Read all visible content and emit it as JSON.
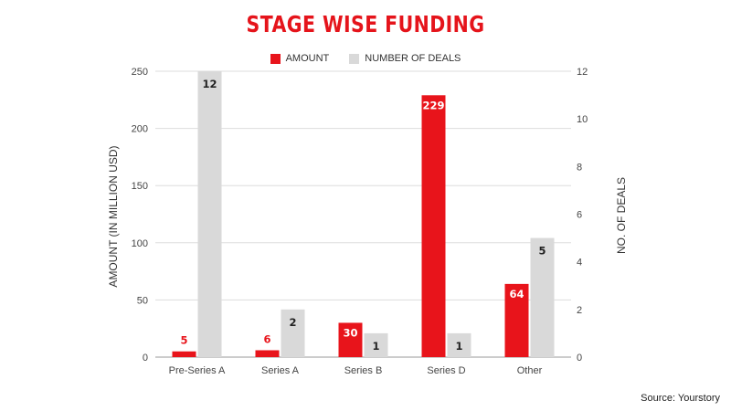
{
  "title": "STAGE WISE FUNDING",
  "source": "Source: Yourstory",
  "colors": {
    "amount": "#e8141b",
    "deals": "#d9d9d9",
    "title": "#e5141b"
  },
  "chart_data": {
    "type": "bar",
    "title": "STAGE WISE FUNDING",
    "categories": [
      "Pre-Series A",
      "Series A",
      "Series B",
      "Series D",
      "Other"
    ],
    "series": [
      {
        "name": "AMOUNT",
        "axis": "left",
        "values": [
          5,
          6,
          30,
          229,
          64
        ]
      },
      {
        "name": "NUMBER OF DEALS",
        "axis": "right",
        "values": [
          12,
          2,
          1,
          1,
          5
        ]
      }
    ],
    "ylabel": "AMOUNT (IN MILLION USD)",
    "y2label": "NO. OF DEALS",
    "ylim": [
      0,
      250
    ],
    "y2lim": [
      0,
      12
    ],
    "yticks": [
      0,
      50,
      100,
      150,
      200,
      250
    ],
    "y2ticks": [
      0,
      2,
      4,
      6,
      8,
      10,
      12
    ],
    "grid": true,
    "legend": "top"
  }
}
